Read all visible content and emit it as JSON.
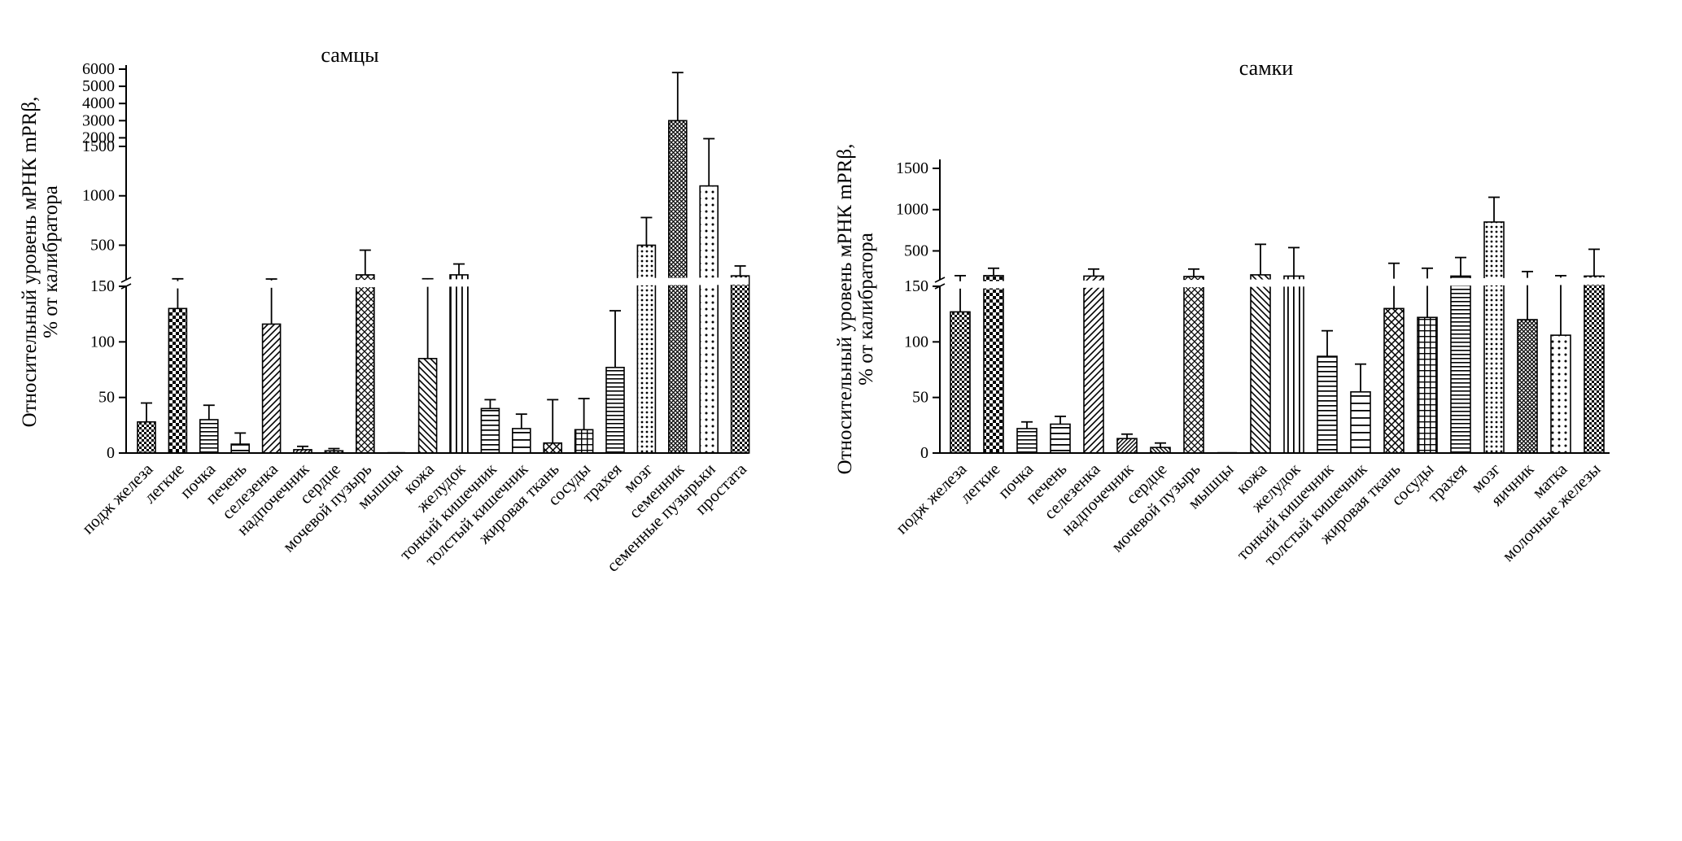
{
  "figure": {
    "background": "#ffffff",
    "ink_color": "#000000",
    "description": "Two bar charts of relative mPRbeta mRNA level in rat tissues, males and females, with broken y-axis"
  },
  "chart_data": [
    {
      "type": "bar",
      "title": "самцы",
      "ylabel_lines": [
        "Относительный уровень мРНК mPRβ,",
        "% от калибратора"
      ],
      "axis_break": true,
      "axis_segments": [
        [
          0,
          150
        ],
        [
          150,
          1500
        ],
        [
          1500,
          6000
        ]
      ],
      "yticks_lower": [
        0,
        50,
        100,
        150
      ],
      "yticks_mid": [
        500,
        1000,
        1500
      ],
      "yticks_upper": [
        2000,
        3000,
        4000,
        5000,
        6000
      ],
      "grid": false,
      "legend": "none",
      "categories": [
        "подж железа",
        "легкие",
        "почка",
        "печень",
        "селезенка",
        "надпочечник",
        "сердце",
        "мочевой пузырь",
        "мышцы",
        "кожа",
        "желудок",
        "тонкий кишечник",
        "толстый кишечник",
        "жировая ткань",
        "сосуды",
        "трахея",
        "мозг",
        "семенник",
        "семенные пузырьки",
        "простата"
      ],
      "values": [
        28,
        130,
        30,
        8,
        116,
        3,
        2,
        200,
        0.5,
        85,
        200,
        40,
        22,
        9,
        21,
        77,
        500,
        3000,
        1100,
        190
      ],
      "errors_high": [
        45,
        160,
        43,
        18,
        158,
        6,
        4,
        450,
        0.5,
        160,
        310,
        48,
        35,
        48,
        49,
        128,
        780,
        5800,
        1950,
        290
      ],
      "patterns": [
        "checker-fine",
        "checker",
        "horiz-dense",
        "horiz",
        "diag-right",
        "diag-right-dense",
        "diag-left-dense",
        "cross-diag",
        "vert-dense",
        "diag-left",
        "vert",
        "horiz-mid",
        "horiz-sparse",
        "cross-diag-mid",
        "grid",
        "horiz-dense",
        "dots",
        "cross-diag-dense",
        "dots-sparse",
        "checker-fine"
      ]
    },
    {
      "type": "bar",
      "title": "самки",
      "ylabel_lines": [
        "Относительный уровень мРНК mPRβ,",
        "% от калибратора"
      ],
      "axis_break": true,
      "axis_segments": [
        [
          0,
          150
        ],
        [
          150,
          1500
        ]
      ],
      "yticks_lower": [
        0,
        50,
        100,
        150
      ],
      "yticks_mid": [
        500,
        1000,
        1500
      ],
      "yticks_upper": [],
      "grid": false,
      "legend": "none",
      "categories": [
        "подж железа",
        "легкие",
        "почка",
        "печень",
        "селезенка",
        "надпочечник",
        "сердце",
        "мочевой пузырь",
        "мышцы",
        "кожа",
        "желудок",
        "тонкий кишечник",
        "толстый кишечник",
        "жировая ткань",
        "сосуды",
        "трахея",
        "мозг",
        "яичник",
        "матка",
        "молочные железы"
      ],
      "values": [
        127,
        200,
        22,
        26,
        195,
        13,
        5,
        190,
        0.5,
        210,
        195,
        87,
        55,
        130,
        122,
        195,
        850,
        120,
        106,
        195
      ],
      "errors_high": [
        200,
        290,
        28,
        33,
        280,
        17,
        9,
        280,
        0.5,
        580,
        540,
        110,
        80,
        350,
        290,
        420,
        1150,
        250,
        200,
        520
      ],
      "patterns": [
        "checker-fine",
        "checker",
        "horiz-dense",
        "horiz",
        "diag-right",
        "diag-right-dense",
        "diag-left-dense",
        "cross-diag",
        "vert-dense",
        "diag-left",
        "vert",
        "horiz-mid",
        "horiz-sparse",
        "cross-diag-mid",
        "grid",
        "horiz-dense",
        "dots",
        "cross-diag-dense",
        "dots-sparse",
        "checker-fine"
      ]
    }
  ]
}
